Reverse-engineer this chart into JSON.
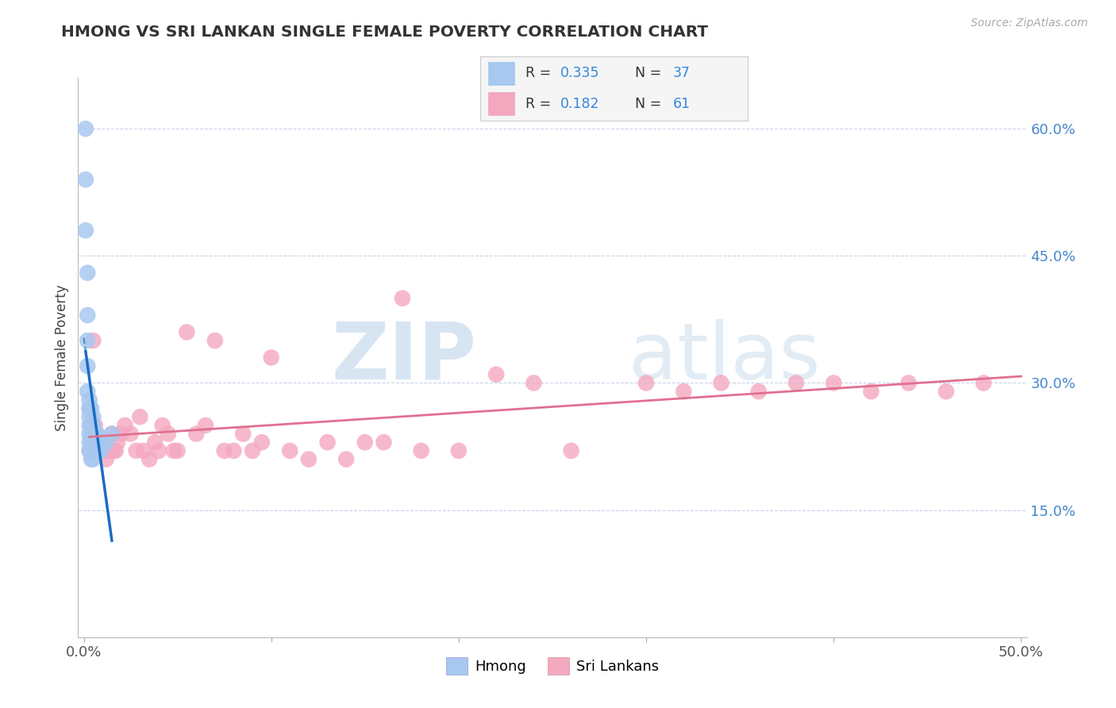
{
  "title": "HMONG VS SRI LANKAN SINGLE FEMALE POVERTY CORRELATION CHART",
  "source_text": "Source: ZipAtlas.com",
  "ylabel": "Single Female Poverty",
  "xlim": [
    -0.003,
    0.503
  ],
  "ylim": [
    0.0,
    0.66
  ],
  "yticks_right": [
    0.15,
    0.3,
    0.45,
    0.6
  ],
  "ytick_right_labels": [
    "15.0%",
    "30.0%",
    "45.0%",
    "60.0%"
  ],
  "hmong_color": "#a8c8f0",
  "srilankan_color": "#f4a8c0",
  "hmong_line_color": "#1a6cc4",
  "srilankan_line_color": "#e07090",
  "watermark_zip": "ZIP",
  "watermark_atlas": "atlas",
  "background_color": "#ffffff",
  "grid_color": "#c8d4e8",
  "hmong_x": [
    0.001,
    0.001,
    0.001,
    0.002,
    0.002,
    0.002,
    0.002,
    0.002,
    0.003,
    0.003,
    0.003,
    0.003,
    0.003,
    0.003,
    0.003,
    0.004,
    0.004,
    0.004,
    0.004,
    0.004,
    0.004,
    0.005,
    0.005,
    0.005,
    0.005,
    0.005,
    0.006,
    0.006,
    0.006,
    0.007,
    0.007,
    0.008,
    0.008,
    0.009,
    0.01,
    0.012,
    0.015
  ],
  "hmong_y": [
    0.6,
    0.54,
    0.48,
    0.43,
    0.38,
    0.35,
    0.32,
    0.29,
    0.28,
    0.27,
    0.26,
    0.25,
    0.24,
    0.23,
    0.22,
    0.27,
    0.25,
    0.24,
    0.23,
    0.22,
    0.21,
    0.26,
    0.25,
    0.23,
    0.22,
    0.21,
    0.24,
    0.23,
    0.22,
    0.24,
    0.22,
    0.23,
    0.22,
    0.22,
    0.23,
    0.23,
    0.24
  ],
  "srilankan_x": [
    0.003,
    0.003,
    0.004,
    0.005,
    0.006,
    0.007,
    0.008,
    0.009,
    0.01,
    0.011,
    0.012,
    0.013,
    0.015,
    0.016,
    0.017,
    0.018,
    0.02,
    0.022,
    0.025,
    0.028,
    0.03,
    0.032,
    0.035,
    0.038,
    0.04,
    0.042,
    0.045,
    0.048,
    0.05,
    0.055,
    0.06,
    0.065,
    0.07,
    0.075,
    0.08,
    0.085,
    0.09,
    0.095,
    0.1,
    0.11,
    0.12,
    0.13,
    0.14,
    0.15,
    0.16,
    0.17,
    0.18,
    0.2,
    0.22,
    0.24,
    0.26,
    0.3,
    0.32,
    0.34,
    0.36,
    0.38,
    0.4,
    0.42,
    0.44,
    0.46,
    0.48
  ],
  "srilankan_y": [
    0.27,
    0.22,
    0.25,
    0.35,
    0.25,
    0.24,
    0.22,
    0.22,
    0.23,
    0.22,
    0.21,
    0.22,
    0.24,
    0.22,
    0.22,
    0.23,
    0.24,
    0.25,
    0.24,
    0.22,
    0.26,
    0.22,
    0.21,
    0.23,
    0.22,
    0.25,
    0.24,
    0.22,
    0.22,
    0.36,
    0.24,
    0.25,
    0.35,
    0.22,
    0.22,
    0.24,
    0.22,
    0.23,
    0.33,
    0.22,
    0.21,
    0.23,
    0.21,
    0.23,
    0.23,
    0.4,
    0.22,
    0.22,
    0.31,
    0.3,
    0.22,
    0.3,
    0.29,
    0.3,
    0.29,
    0.3,
    0.3,
    0.29,
    0.3,
    0.29,
    0.3
  ],
  "hmong_trend_x": [
    0.001,
    0.015
  ],
  "hmong_trend_slope": -15.0,
  "hmong_trend_intercept": 0.44,
  "srilankan_trend_x": [
    0.003,
    0.48
  ],
  "srilankan_trend_slope": 0.12,
  "srilankan_trend_intercept": 0.225
}
